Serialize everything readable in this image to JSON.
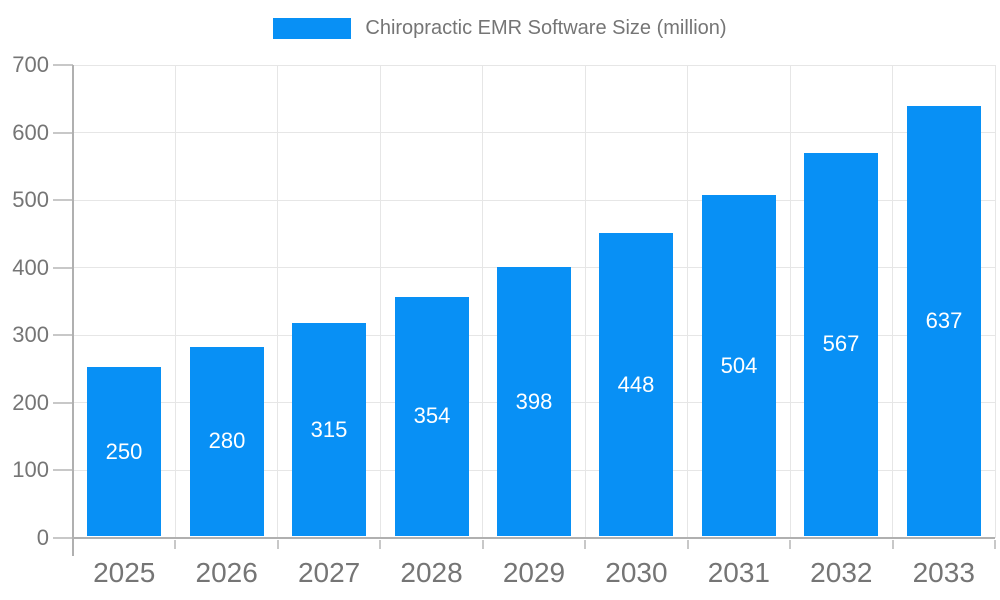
{
  "chart_data": {
    "type": "bar",
    "title": "Chiropractic EMR Software Size (million)",
    "legend": {
      "label": "Chiropractic EMR Software Size (million)",
      "position": "top-center"
    },
    "categories": [
      "2025",
      "2026",
      "2027",
      "2028",
      "2029",
      "2030",
      "2031",
      "2032",
      "2033"
    ],
    "values": [
      250,
      280,
      315,
      354,
      398,
      448,
      504,
      567,
      637
    ],
    "xlabel": "",
    "ylabel": "",
    "ylim": [
      0,
      700
    ],
    "ytick_step": 100,
    "yticks": [
      0,
      100,
      200,
      300,
      400,
      500,
      600,
      700
    ],
    "grid": "on",
    "value_labels": "inside-center",
    "colors": {
      "bar": "#0890f5",
      "grid": "#e6e6e6",
      "axis": "#b0b0b0",
      "tick": "#c8c8c8",
      "axis_label_text": "#757575",
      "value_label_text": "#ffffff",
      "background": "#ffffff"
    }
  }
}
